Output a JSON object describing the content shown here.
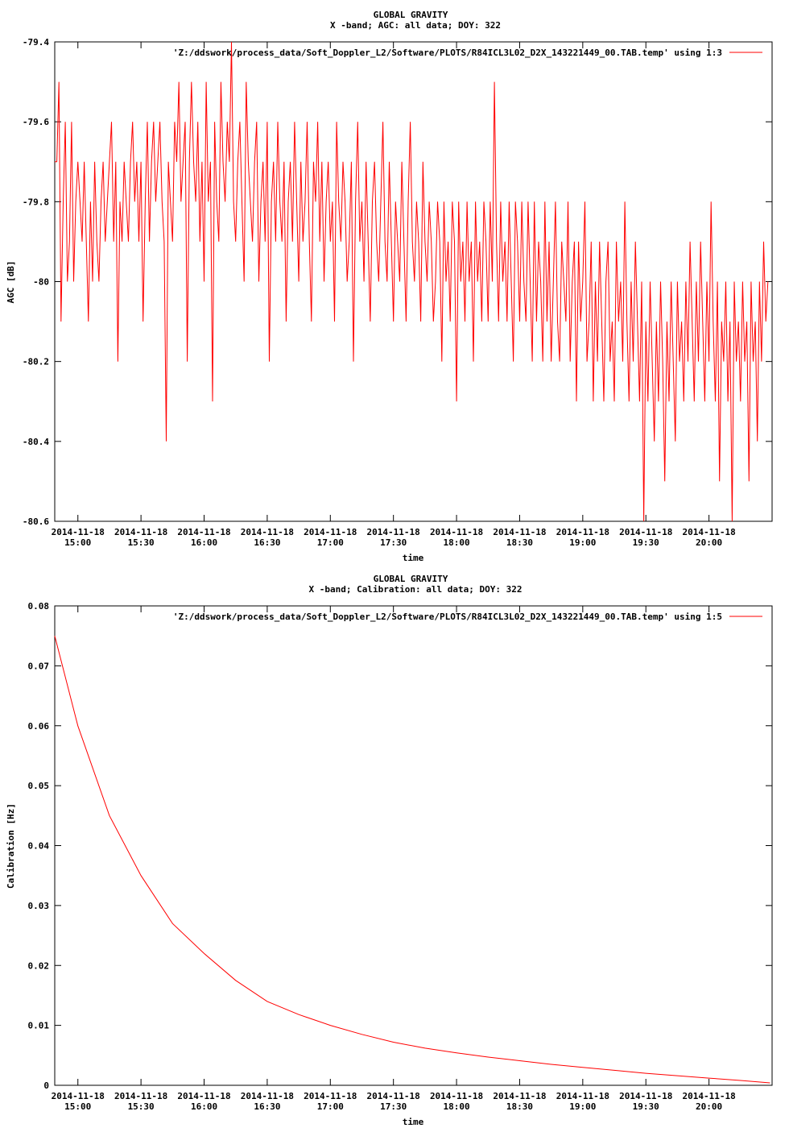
{
  "chart_data": [
    {
      "type": "line",
      "title": "GLOBAL GRAVITY",
      "subtitle": "X -band; AGC: all data; DOY: 322",
      "xlabel": "time",
      "ylabel": "AGC [dB]",
      "legend": "'Z:/ddswork/process_data/Soft_Doppler_L2/Software/PLOTS/R84ICL3L02_D2X_143221449_00.TAB.temp' using 1:3",
      "legend_position": "top-right",
      "line_color": "#ff0000",
      "grid": false,
      "xlim": [
        "2014-11-18 14:49:00",
        "2014-11-18 20:30:00"
      ],
      "ylim": [
        -80.6,
        -79.4
      ],
      "ytick_labels": [
        "-79.4",
        "-79.6",
        "-79.8",
        "-80",
        "-80.2",
        "-80.4",
        "-80.6"
      ],
      "ytick_values": [
        -79.4,
        -79.6,
        -79.8,
        -80.0,
        -80.2,
        -80.4,
        -80.6
      ],
      "xtick_dates": [
        "2014-11-18",
        "2014-11-18",
        "2014-11-18",
        "2014-11-18",
        "2014-11-18",
        "2014-11-18",
        "2014-11-18",
        "2014-11-18",
        "2014-11-18",
        "2014-11-18",
        "2014-11-18"
      ],
      "xtick_times": [
        "15:00",
        "15:30",
        "16:00",
        "16:30",
        "17:00",
        "17:30",
        "18:00",
        "18:30",
        "19:00",
        "19:30",
        "20:00"
      ],
      "x_range": [
        "2014-11-18 14:49:00",
        "2014-11-18 20:29:00"
      ],
      "sample_step_s": 60,
      "series": [
        {
          "values": [
            -79.7,
            -79.7,
            -79.5,
            -80.1,
            -79.8,
            -79.6,
            -80.0,
            -79.9,
            -79.6,
            -80.0,
            -79.8,
            -79.7,
            -79.8,
            -79.9,
            -79.7,
            -79.9,
            -80.1,
            -79.8,
            -80.0,
            -79.7,
            -79.9,
            -80.0,
            -79.8,
            -79.7,
            -79.9,
            -79.8,
            -79.7,
            -79.6,
            -79.9,
            -79.7,
            -80.2,
            -79.8,
            -79.9,
            -79.7,
            -79.8,
            -79.9,
            -79.7,
            -79.6,
            -79.8,
            -79.7,
            -79.9,
            -79.7,
            -80.1,
            -79.8,
            -79.6,
            -79.9,
            -79.7,
            -79.6,
            -79.8,
            -79.7,
            -79.6,
            -79.8,
            -79.9,
            -80.4,
            -79.7,
            -79.8,
            -79.9,
            -79.6,
            -79.7,
            -79.5,
            -79.8,
            -79.7,
            -79.6,
            -80.2,
            -79.7,
            -79.5,
            -79.7,
            -79.8,
            -79.6,
            -79.9,
            -79.7,
            -80.0,
            -79.5,
            -79.8,
            -79.7,
            -80.3,
            -79.6,
            -79.8,
            -79.9,
            -79.5,
            -79.7,
            -79.8,
            -79.6,
            -79.7,
            -79.4,
            -79.8,
            -79.9,
            -79.7,
            -79.6,
            -79.8,
            -80.0,
            -79.5,
            -79.7,
            -79.8,
            -79.9,
            -79.7,
            -79.6,
            -80.0,
            -79.8,
            -79.7,
            -79.9,
            -79.6,
            -80.2,
            -79.8,
            -79.7,
            -79.9,
            -79.6,
            -79.8,
            -79.9,
            -79.7,
            -80.1,
            -79.8,
            -79.7,
            -79.9,
            -79.6,
            -79.8,
            -80.0,
            -79.7,
            -79.9,
            -79.8,
            -79.6,
            -79.9,
            -80.1,
            -79.7,
            -79.8,
            -79.6,
            -79.9,
            -79.7,
            -80.0,
            -79.8,
            -79.7,
            -79.9,
            -79.8,
            -80.1,
            -79.6,
            -79.8,
            -79.9,
            -79.7,
            -79.8,
            -80.0,
            -79.9,
            -79.7,
            -80.2,
            -79.8,
            -79.6,
            -79.9,
            -79.8,
            -80.0,
            -79.7,
            -79.9,
            -80.1,
            -79.8,
            -79.7,
            -79.9,
            -80.0,
            -79.8,
            -79.6,
            -79.9,
            -80.0,
            -79.7,
            -79.9,
            -80.1,
            -79.8,
            -79.9,
            -80.0,
            -79.7,
            -79.9,
            -80.1,
            -79.8,
            -79.6,
            -79.9,
            -80.0,
            -79.8,
            -79.9,
            -80.1,
            -79.7,
            -79.9,
            -80.0,
            -79.8,
            -79.9,
            -80.1,
            -80.0,
            -79.8,
            -79.9,
            -80.2,
            -79.8,
            -80.0,
            -79.9,
            -80.1,
            -79.8,
            -79.9,
            -80.3,
            -79.8,
            -80.0,
            -79.9,
            -80.1,
            -79.8,
            -80.0,
            -79.9,
            -80.2,
            -79.8,
            -80.0,
            -79.9,
            -80.1,
            -79.8,
            -79.9,
            -80.1,
            -79.8,
            -80.0,
            -79.5,
            -79.9,
            -80.1,
            -79.8,
            -80.0,
            -79.9,
            -80.1,
            -79.8,
            -80.0,
            -80.2,
            -79.8,
            -79.9,
            -80.1,
            -79.8,
            -80.0,
            -80.1,
            -79.8,
            -80.0,
            -80.2,
            -79.8,
            -80.1,
            -79.9,
            -80.0,
            -80.2,
            -79.8,
            -80.1,
            -79.9,
            -80.2,
            -80.0,
            -79.8,
            -80.1,
            -80.2,
            -79.9,
            -80.0,
            -80.1,
            -79.8,
            -80.2,
            -80.0,
            -79.9,
            -80.3,
            -79.9,
            -80.1,
            -80.0,
            -79.8,
            -80.2,
            -80.1,
            -79.9,
            -80.3,
            -80.0,
            -80.2,
            -79.9,
            -80.1,
            -80.3,
            -80.0,
            -79.9,
            -80.2,
            -80.1,
            -80.3,
            -79.9,
            -80.1,
            -80.0,
            -80.2,
            -79.8,
            -80.1,
            -80.3,
            -80.0,
            -80.2,
            -79.9,
            -80.1,
            -80.3,
            -80.0,
            -80.6,
            -80.1,
            -80.3,
            -80.0,
            -80.2,
            -80.4,
            -80.1,
            -80.3,
            -80.0,
            -80.2,
            -80.5,
            -80.1,
            -80.3,
            -80.0,
            -80.2,
            -80.4,
            -80.0,
            -80.2,
            -80.1,
            -80.3,
            -80.0,
            -80.2,
            -79.9,
            -80.1,
            -80.3,
            -80.0,
            -80.2,
            -79.9,
            -80.1,
            -80.3,
            -80.0,
            -80.2,
            -79.8,
            -80.1,
            -80.3,
            -80.0,
            -80.5,
            -80.1,
            -80.2,
            -80.0,
            -80.3,
            -80.1,
            -80.6,
            -80.0,
            -80.2,
            -80.1,
            -80.3,
            -80.0,
            -80.2,
            -80.1,
            -80.5,
            -80.0,
            -80.2,
            -80.1,
            -80.4,
            -80.0,
            -80.2,
            -79.9,
            -80.1,
            -80.0
          ]
        }
      ]
    },
    {
      "type": "line",
      "title": "GLOBAL GRAVITY",
      "subtitle": "X -band; Calibration: all data; DOY: 322",
      "xlabel": "time",
      "ylabel": "Calibration [Hz]",
      "legend": "'Z:/ddswork/process_data/Soft_Doppler_L2/Software/PLOTS/R84ICL3L02_D2X_143221449_00.TAB.temp' using 1:5",
      "legend_position": "top-right",
      "line_color": "#ff0000",
      "grid": false,
      "xlim": [
        "2014-11-18 14:49:00",
        "2014-11-18 20:30:00"
      ],
      "ylim": [
        0,
        0.08
      ],
      "ytick_labels": [
        "0",
        "0.01",
        "0.02",
        "0.03",
        "0.04",
        "0.05",
        "0.06",
        "0.07",
        "0.08"
      ],
      "ytick_values": [
        0,
        0.01,
        0.02,
        0.03,
        0.04,
        0.05,
        0.06,
        0.07,
        0.08
      ],
      "xtick_dates": [
        "2014-11-18",
        "2014-11-18",
        "2014-11-18",
        "2014-11-18",
        "2014-11-18",
        "2014-11-18",
        "2014-11-18",
        "2014-11-18",
        "2014-11-18",
        "2014-11-18",
        "2014-11-18"
      ],
      "xtick_times": [
        "15:00",
        "15:30",
        "16:00",
        "16:30",
        "17:00",
        "17:30",
        "18:00",
        "18:30",
        "19:00",
        "19:30",
        "20:00"
      ],
      "x": [
        "2014-11-18 14:49:00",
        "2014-11-18 15:00:00",
        "2014-11-18 15:15:00",
        "2014-11-18 15:30:00",
        "2014-11-18 15:45:00",
        "2014-11-18 16:00:00",
        "2014-11-18 16:15:00",
        "2014-11-18 16:30:00",
        "2014-11-18 16:45:00",
        "2014-11-18 17:00:00",
        "2014-11-18 17:15:00",
        "2014-11-18 17:30:00",
        "2014-11-18 17:45:00",
        "2014-11-18 18:00:00",
        "2014-11-18 18:15:00",
        "2014-11-18 18:30:00",
        "2014-11-18 18:45:00",
        "2014-11-18 19:00:00",
        "2014-11-18 19:15:00",
        "2014-11-18 19:30:00",
        "2014-11-18 19:45:00",
        "2014-11-18 20:00:00",
        "2014-11-18 20:15:00",
        "2014-11-18 20:29:00"
      ],
      "series": [
        {
          "values": [
            0.075,
            0.06,
            0.045,
            0.035,
            0.027,
            0.022,
            0.0175,
            0.014,
            0.0118,
            0.01,
            0.0085,
            0.0072,
            0.0062,
            0.0054,
            0.0047,
            0.0041,
            0.0035,
            0.003,
            0.0025,
            0.002,
            0.0016,
            0.0012,
            0.0008,
            0.0004
          ]
        }
      ]
    }
  ]
}
